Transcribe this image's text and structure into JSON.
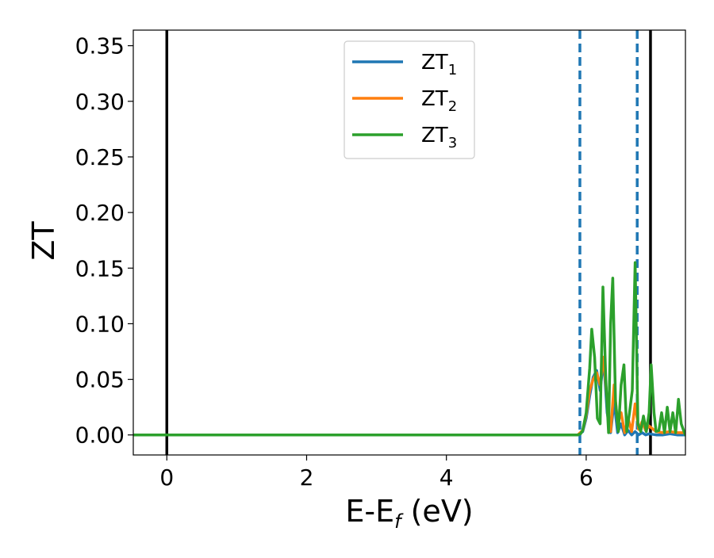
{
  "chart_data": {
    "type": "line",
    "xlabel": {
      "main": "E-E",
      "sub": "f",
      "unit": " (eV)"
    },
    "ylabel": "ZT",
    "xlim": [
      -0.48,
      7.42
    ],
    "ylim": [
      -0.018,
      0.364
    ],
    "x_ticks": [
      {
        "value": 0,
        "label": "0"
      },
      {
        "value": 2,
        "label": "2"
      },
      {
        "value": 4,
        "label": "4"
      },
      {
        "value": 6,
        "label": "6"
      }
    ],
    "y_ticks": [
      {
        "value": 0.0,
        "label": "0.00"
      },
      {
        "value": 0.05,
        "label": "0.05"
      },
      {
        "value": 0.1,
        "label": "0.10"
      },
      {
        "value": 0.15,
        "label": "0.15"
      },
      {
        "value": 0.2,
        "label": "0.20"
      },
      {
        "value": 0.25,
        "label": "0.25"
      },
      {
        "value": 0.3,
        "label": "0.30"
      },
      {
        "value": 0.35,
        "label": "0.35"
      }
    ],
    "vlines": [
      {
        "x": 0.0,
        "style": "solid",
        "color": "#000000"
      },
      {
        "x": 6.92,
        "style": "solid",
        "color": "#000000"
      },
      {
        "x": 5.91,
        "style": "dashed",
        "color": "#1f77b4"
      },
      {
        "x": 6.73,
        "style": "dashed",
        "color": "#1f77b4"
      }
    ],
    "legend_position": "top-center",
    "series": [
      {
        "name": "ZT",
        "sub": "1",
        "color": "#1f77b4",
        "x": [
          -0.48,
          5.88,
          5.95,
          6.0,
          6.05,
          6.1,
          6.15,
          6.2,
          6.25,
          6.3,
          6.35,
          6.4,
          6.45,
          6.5,
          6.55,
          6.6,
          6.65,
          6.7,
          6.75,
          6.8,
          6.85,
          6.9,
          7.0,
          7.1,
          7.2,
          7.3,
          7.42
        ],
        "y": [
          0,
          0,
          0.003,
          0.015,
          0.035,
          0.052,
          0.058,
          0.04,
          0.068,
          0.02,
          0.002,
          0.03,
          0.002,
          0.01,
          0.0,
          0.004,
          0.0,
          0.003,
          0.0,
          0.002,
          0.0,
          0.001,
          0.0,
          0.0,
          0.001,
          0.0,
          0.0
        ]
      },
      {
        "name": "ZT",
        "sub": "2",
        "color": "#ff7f0e",
        "x": [
          -0.48,
          5.88,
          5.95,
          6.0,
          6.05,
          6.1,
          6.15,
          6.2,
          6.25,
          6.3,
          6.35,
          6.4,
          6.45,
          6.5,
          6.55,
          6.6,
          6.65,
          6.7,
          6.75,
          6.8,
          6.85,
          6.9,
          7.0,
          7.1,
          7.2,
          7.3,
          7.42
        ],
        "y": [
          0,
          0,
          0.004,
          0.018,
          0.04,
          0.05,
          0.056,
          0.045,
          0.07,
          0.03,
          0.003,
          0.045,
          0.01,
          0.02,
          0.002,
          0.015,
          0.003,
          0.028,
          0.005,
          0.012,
          0.004,
          0.008,
          0.003,
          0.002,
          0.003,
          0.002,
          0.002
        ]
      },
      {
        "name": "ZT",
        "sub": "3",
        "color": "#2ca02c",
        "x": [
          -0.48,
          5.88,
          5.92,
          5.95,
          6.0,
          6.05,
          6.08,
          6.12,
          6.16,
          6.2,
          6.24,
          6.28,
          6.32,
          6.35,
          6.38,
          6.42,
          6.46,
          6.5,
          6.54,
          6.58,
          6.62,
          6.66,
          6.7,
          6.74,
          6.78,
          6.82,
          6.86,
          6.9,
          6.93,
          6.97,
          7.0,
          7.04,
          7.08,
          7.12,
          7.16,
          7.2,
          7.24,
          7.28,
          7.32,
          7.36,
          7.4,
          7.42
        ],
        "y": [
          0,
          0,
          0.001,
          0.004,
          0.02,
          0.06,
          0.095,
          0.07,
          0.015,
          0.01,
          0.133,
          0.05,
          0.002,
          0.1,
          0.141,
          0.03,
          0.003,
          0.045,
          0.063,
          0.003,
          0.02,
          0.04,
          0.155,
          0.01,
          0.003,
          0.017,
          0.003,
          0.02,
          0.063,
          0.02,
          0.003,
          0.004,
          0.02,
          0.002,
          0.025,
          0.003,
          0.02,
          0.002,
          0.032,
          0.01,
          0.003,
          0.0
        ]
      }
    ]
  }
}
